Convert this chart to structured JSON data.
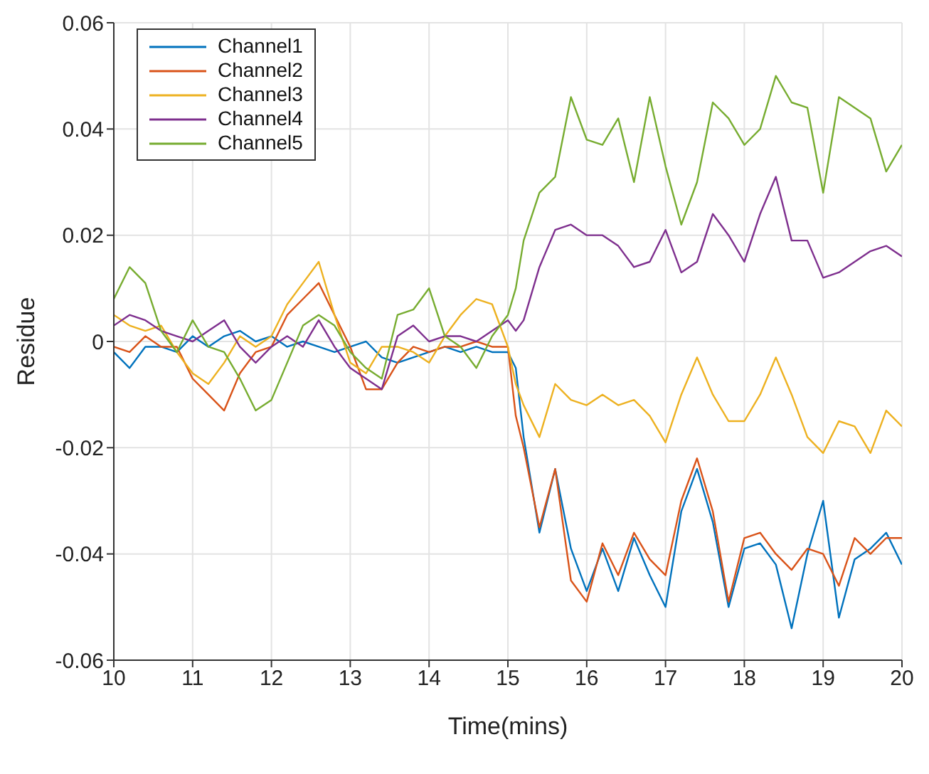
{
  "chart_data": {
    "type": "line",
    "xlabel": "Time(mins)",
    "ylabel": "Residue",
    "x": [
      10,
      10.2,
      10.4,
      10.6,
      10.8,
      11,
      11.2,
      11.4,
      11.6,
      11.8,
      12,
      12.2,
      12.4,
      12.6,
      12.8,
      13,
      13.2,
      13.4,
      13.6,
      13.8,
      14,
      14.2,
      14.4,
      14.6,
      14.8,
      15,
      15.1,
      15.2,
      15.4,
      15.6,
      15.8,
      16,
      16.2,
      16.4,
      16.6,
      16.8,
      17,
      17.2,
      17.4,
      17.6,
      17.8,
      18,
      18.2,
      18.4,
      18.6,
      18.8,
      19,
      19.2,
      19.4,
      19.6,
      19.8,
      20
    ],
    "series": [
      {
        "name": "Channel1",
        "color": "#0072bd",
        "values": [
          -0.002,
          -0.005,
          -0.001,
          -0.001,
          -0.002,
          0.001,
          -0.001,
          0.001,
          0.002,
          0,
          0.001,
          -0.001,
          0,
          -0.001,
          -0.002,
          -0.001,
          0,
          -0.003,
          -0.004,
          -0.003,
          -0.002,
          -0.001,
          -0.002,
          -0.001,
          -0.002,
          -0.002,
          -0.005,
          -0.018,
          -0.036,
          -0.024,
          -0.039,
          -0.047,
          -0.039,
          -0.047,
          -0.037,
          -0.044,
          -0.05,
          -0.032,
          -0.024,
          -0.034,
          -0.05,
          -0.039,
          -0.038,
          -0.042,
          -0.054,
          -0.04,
          -0.03,
          -0.052,
          -0.041,
          -0.039,
          -0.036,
          -0.042
        ]
      },
      {
        "name": "Channel2",
        "color": "#d95319",
        "values": [
          -0.001,
          -0.002,
          0.001,
          -0.001,
          -0.001,
          -0.007,
          -0.01,
          -0.013,
          -0.006,
          -0.002,
          -0.001,
          0.005,
          0.008,
          0.011,
          0.005,
          -0.001,
          -0.009,
          -0.009,
          -0.004,
          -0.001,
          -0.002,
          -0.001,
          -0.001,
          0,
          -0.001,
          -0.001,
          -0.014,
          -0.02,
          -0.035,
          -0.024,
          -0.045,
          -0.049,
          -0.038,
          -0.044,
          -0.036,
          -0.041,
          -0.044,
          -0.03,
          -0.022,
          -0.032,
          -0.049,
          -0.037,
          -0.036,
          -0.04,
          -0.043,
          -0.039,
          -0.04,
          -0.046,
          -0.037,
          -0.04,
          -0.037,
          -0.037
        ]
      },
      {
        "name": "Channel3",
        "color": "#edb120",
        "values": [
          0.005,
          0.003,
          0.002,
          0.003,
          -0.002,
          -0.006,
          -0.008,
          -0.004,
          0.001,
          -0.001,
          0.001,
          0.007,
          0.011,
          0.015,
          0.005,
          -0.004,
          -0.006,
          -0.001,
          -0.001,
          -0.002,
          -0.004,
          0.001,
          0.005,
          0.008,
          0.007,
          -0.001,
          -0.008,
          -0.012,
          -0.018,
          -0.008,
          -0.011,
          -0.012,
          -0.01,
          -0.012,
          -0.011,
          -0.014,
          -0.019,
          -0.01,
          -0.003,
          -0.01,
          -0.015,
          -0.015,
          -0.01,
          -0.003,
          -0.01,
          -0.018,
          -0.021,
          -0.015,
          -0.016,
          -0.021,
          -0.013,
          -0.016
        ]
      },
      {
        "name": "Channel4",
        "color": "#7e2f8e",
        "values": [
          0.003,
          0.005,
          0.004,
          0.002,
          0.001,
          0,
          0.002,
          0.004,
          -0.001,
          -0.004,
          -0.001,
          0.001,
          -0.001,
          0.004,
          -0.001,
          -0.005,
          -0.007,
          -0.009,
          0.001,
          0.003,
          0,
          0.001,
          0.001,
          0,
          0.002,
          0.004,
          0.002,
          0.004,
          0.014,
          0.021,
          0.022,
          0.02,
          0.02,
          0.018,
          0.014,
          0.015,
          0.021,
          0.013,
          0.015,
          0.024,
          0.02,
          0.015,
          0.024,
          0.031,
          0.019,
          0.019,
          0.012,
          0.013,
          0.015,
          0.017,
          0.018,
          0.016
        ]
      },
      {
        "name": "Channel5",
        "color": "#77ac30",
        "values": [
          0.008,
          0.014,
          0.011,
          0.002,
          -0.002,
          0.004,
          -0.001,
          -0.002,
          -0.007,
          -0.013,
          -0.011,
          -0.004,
          0.003,
          0.005,
          0.003,
          -0.002,
          -0.005,
          -0.007,
          0.005,
          0.006,
          0.01,
          0.001,
          -0.001,
          -0.005,
          0.001,
          0.005,
          0.01,
          0.019,
          0.028,
          0.031,
          0.046,
          0.038,
          0.037,
          0.042,
          0.03,
          0.046,
          0.033,
          0.022,
          0.03,
          0.045,
          0.042,
          0.037,
          0.04,
          0.05,
          0.045,
          0.044,
          0.028,
          0.046,
          0.044,
          0.042,
          0.032,
          0.037
        ]
      }
    ],
    "xlim": [
      10,
      20
    ],
    "xticks": [
      10,
      11,
      12,
      13,
      14,
      15,
      16,
      17,
      18,
      19,
      20
    ],
    "ylim": [
      -0.06,
      0.06
    ],
    "yticks": [
      -0.06,
      -0.04,
      -0.02,
      0,
      0.02,
      0.04,
      0.06
    ],
    "grid": true,
    "legend": "top left",
    "marker": "none",
    "line_style": "solid"
  }
}
